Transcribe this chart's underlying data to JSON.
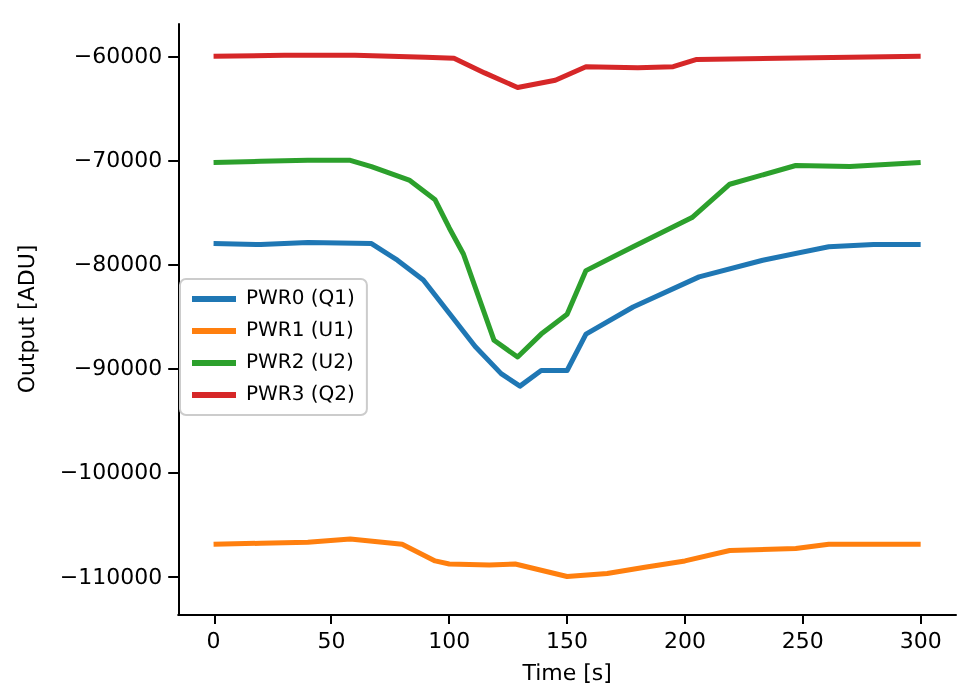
{
  "chart_data": {
    "type": "line",
    "xlabel": "Time [s]",
    "ylabel": "Output [ADU]",
    "xlim": [
      -15,
      315
    ],
    "ylim": [
      -113600,
      -56900
    ],
    "xticks": [
      0,
      50,
      100,
      150,
      200,
      250,
      300
    ],
    "yticks": [
      -60000,
      -70000,
      -80000,
      -90000,
      -100000,
      -110000
    ],
    "grid": false,
    "legend": "left",
    "marker": "none",
    "line_style": "solid",
    "series": [
      {
        "name": "PWR0 (Q1)",
        "color": "#1f77b4",
        "x": [
          0,
          20,
          40,
          67,
          78,
          89,
          100,
          111,
          122,
          130,
          139,
          150,
          158,
          178,
          206,
          233,
          261,
          280,
          300
        ],
        "values": [
          -78000,
          -78100,
          -77900,
          -78000,
          -79600,
          -81500,
          -84700,
          -87900,
          -90500,
          -91700,
          -90200,
          -90200,
          -86700,
          -84100,
          -81200,
          -79600,
          -78300,
          -78100,
          -78100
        ]
      },
      {
        "name": "PWR1 (U1)",
        "color": "#ff7f0e",
        "x": [
          0,
          20,
          40,
          58,
          80,
          94,
          100,
          117,
          128,
          150,
          167,
          183,
          200,
          219,
          247,
          261,
          280,
          300
        ],
        "values": [
          -106900,
          -106800,
          -106700,
          -106400,
          -106900,
          -108500,
          -108800,
          -108900,
          -108800,
          -110000,
          -109700,
          -109100,
          -108500,
          -107500,
          -107300,
          -106900,
          -106900,
          -106900
        ]
      },
      {
        "name": "PWR2 (U2)",
        "color": "#2ca02c",
        "x": [
          0,
          20,
          40,
          58,
          67,
          83,
          94,
          100,
          106,
          119,
          129,
          139,
          150,
          158,
          178,
          203,
          219,
          247,
          270,
          300
        ],
        "values": [
          -70200,
          -70100,
          -70000,
          -70000,
          -70600,
          -71900,
          -73800,
          -76500,
          -79000,
          -87300,
          -88900,
          -86700,
          -84800,
          -80600,
          -78300,
          -75500,
          -72300,
          -70500,
          -70600,
          -70200
        ]
      },
      {
        "name": "PWR3 (Q2)",
        "color": "#d62728",
        "x": [
          0,
          30,
          60,
          90,
          102,
          115,
          129,
          145,
          158,
          180,
          195,
          205,
          240,
          270,
          300
        ],
        "values": [
          -60000,
          -59900,
          -59900,
          -60100,
          -60200,
          -61600,
          -63000,
          -62300,
          -61000,
          -61100,
          -61000,
          -60300,
          -60200,
          -60100,
          -60000
        ]
      }
    ]
  }
}
